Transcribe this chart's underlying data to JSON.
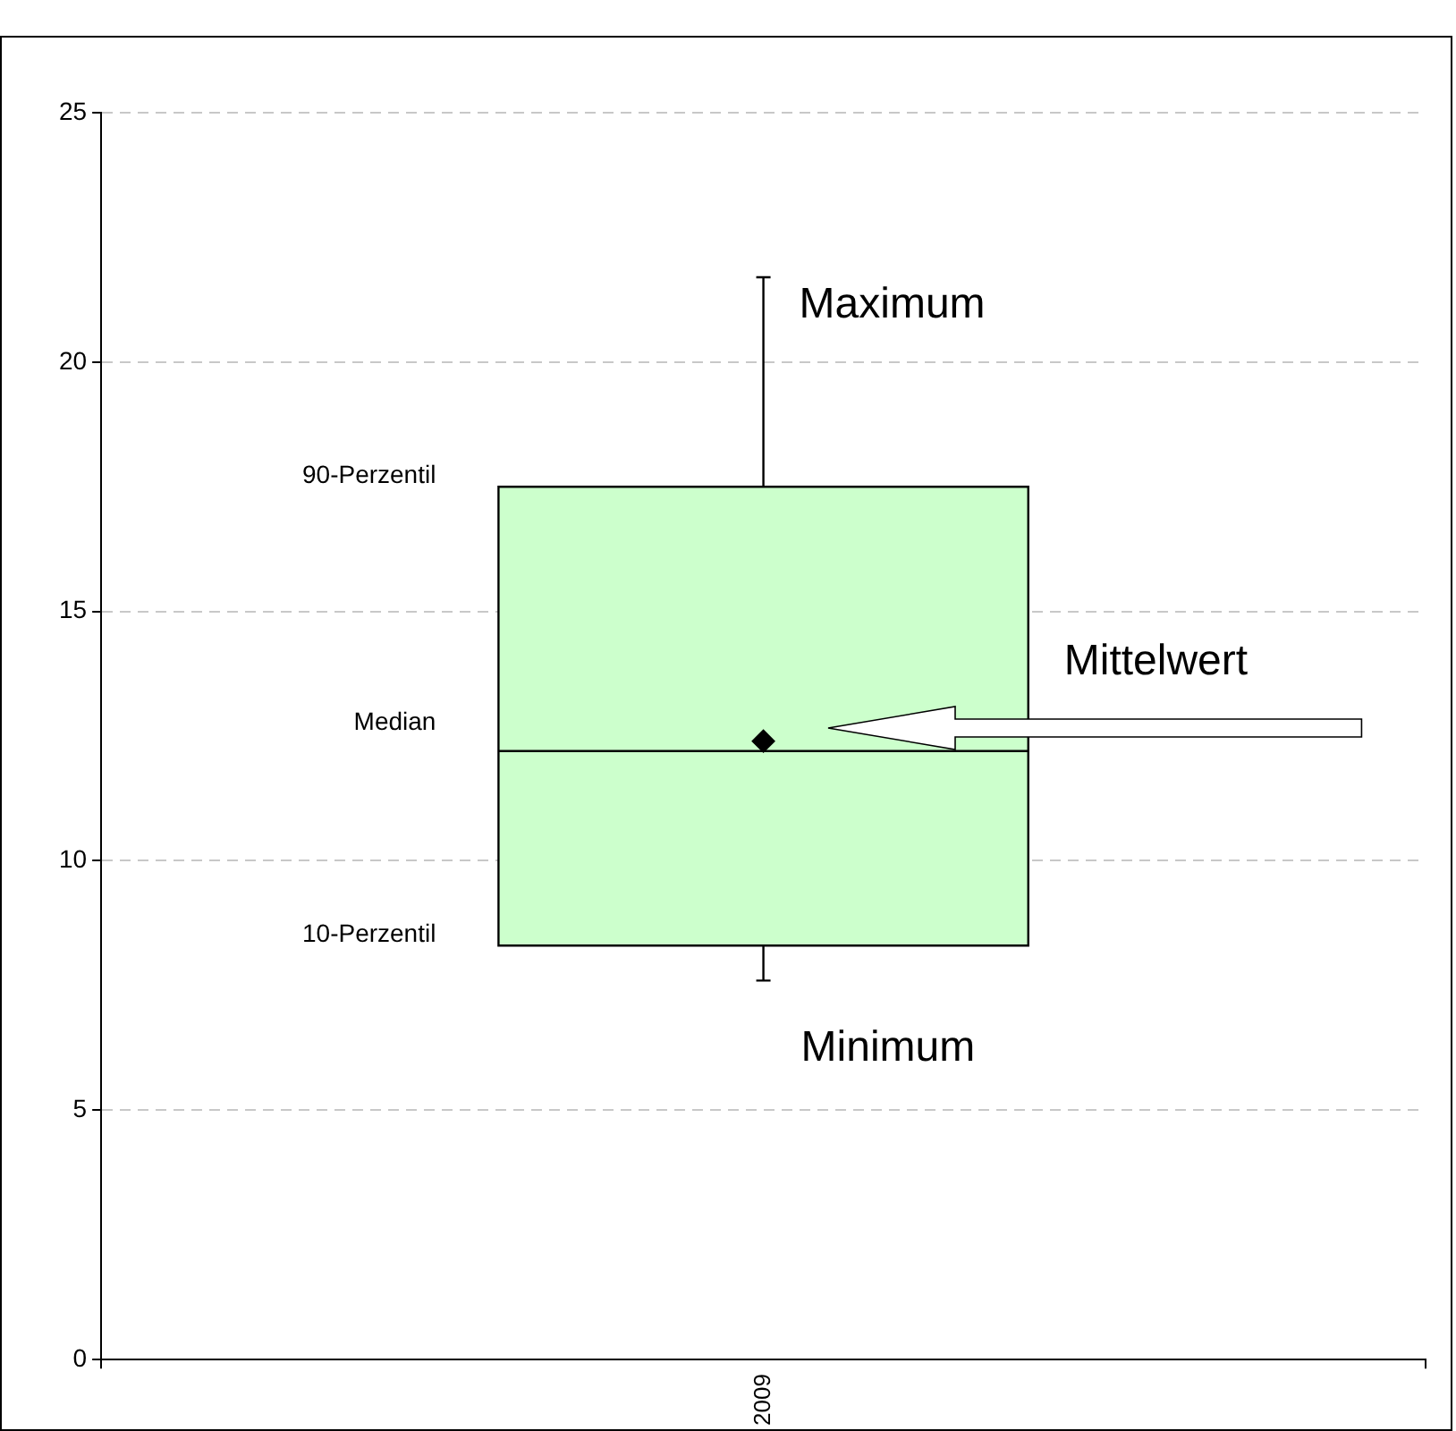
{
  "chart_data": {
    "type": "box",
    "categories": [
      "2009"
    ],
    "boxes": [
      {
        "low": 7.6,
        "q1": 8.3,
        "median": 12.2,
        "q3": 17.5,
        "high": 21.7,
        "mean": 12.4
      }
    ],
    "color": "#ccffcc",
    "marker": "diamond",
    "ylim": [
      0,
      25
    ],
    "yticks": [
      0,
      5,
      10,
      15,
      20,
      25
    ],
    "grid": "y",
    "annotations": [
      "Maximum",
      "90-Perzentil",
      "Mittelwert",
      "Median",
      "10-Perzentil",
      "Minimum"
    ]
  }
}
